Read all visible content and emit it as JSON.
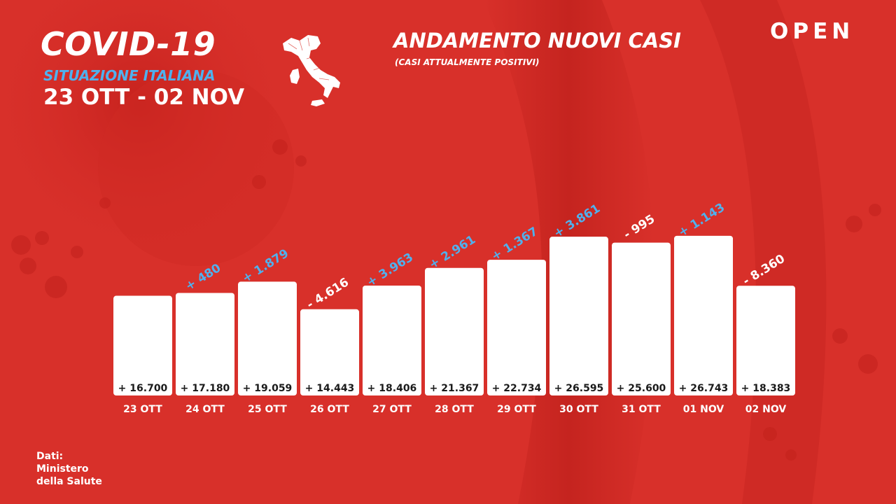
{
  "header": {
    "headline": "COVID-19",
    "subline": "SITUAZIONE ITALIANA",
    "period": "23 OTT - 02 NOV"
  },
  "brand": {
    "logo_text": "OPEN"
  },
  "source": {
    "label": "Dati:",
    "name_line1": "Ministero",
    "name_line2": "della Salute"
  },
  "icons": {
    "map": "italy-map-icon"
  },
  "colors": {
    "background": "#d8302a",
    "bar": "#ffffff",
    "positive_delta": "#4fb1ee",
    "negative_delta": "#ffffff",
    "text": "#ffffff",
    "value_label": "#1a1a1a"
  },
  "chart_data": {
    "type": "bar",
    "title": "ANDAMENTO NUOVI CASI",
    "subtitle": "(CASI ATTUALMENTE POSITIVI)",
    "categories": [
      "23 OTT",
      "24 OTT",
      "25 OTT",
      "26 OTT",
      "27 OTT",
      "28 OTT",
      "29 OTT",
      "30 OTT",
      "31 OTT",
      "01 NOV",
      "02 NOV"
    ],
    "values": [
      16700,
      17180,
      19059,
      14443,
      18406,
      21367,
      22734,
      26595,
      25600,
      26743,
      18383
    ],
    "value_labels": [
      "+ 16.700",
      "+ 17.180",
      "+ 19.059",
      "+ 14.443",
      "+ 18.406",
      "+ 21.367",
      "+ 22.734",
      "+ 26.595",
      "+ 25.600",
      "+ 26.743",
      "+ 18.383"
    ],
    "delta_labels": [
      "",
      "+ 480",
      "+ 1.879",
      "- 4.616",
      "+ 3.963",
      "+ 2.961",
      "+ 1.367",
      "+ 3.861",
      "- 995",
      "+ 1.143",
      "- 8.360"
    ],
    "delta_sign": [
      "",
      "positive",
      "positive",
      "negative",
      "positive",
      "positive",
      "positive",
      "positive",
      "negative",
      "positive",
      "negative"
    ],
    "xlabel": "",
    "ylabel": "",
    "grid": false
  }
}
